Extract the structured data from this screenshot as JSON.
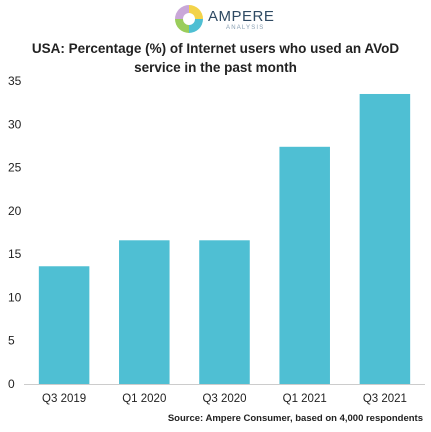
{
  "logo": {
    "word": "AMPERE",
    "sub": "ANALYSIS"
  },
  "colors": {
    "bar": "#4fbfd3",
    "axis": "#cccccc",
    "text": "#222222"
  },
  "chart_data": {
    "type": "bar",
    "title_line1": "USA: Percentage (%) of Internet users who used an AVoD",
    "title_line2": "service in the past month",
    "categories": [
      "Q3 2019",
      "Q1 2020",
      "Q3 2020",
      "Q1 2021",
      "Q3 2021"
    ],
    "values": [
      13.6,
      16.6,
      16.6,
      27.4,
      33.5
    ],
    "xlabel": "",
    "ylabel": "",
    "ylim": [
      0,
      35
    ],
    "yticks": [
      0,
      5,
      10,
      15,
      20,
      25,
      30,
      35
    ],
    "grid": false,
    "legend": "none"
  },
  "source": "Source: Ampere Consumer, based on 4,000 respondents"
}
